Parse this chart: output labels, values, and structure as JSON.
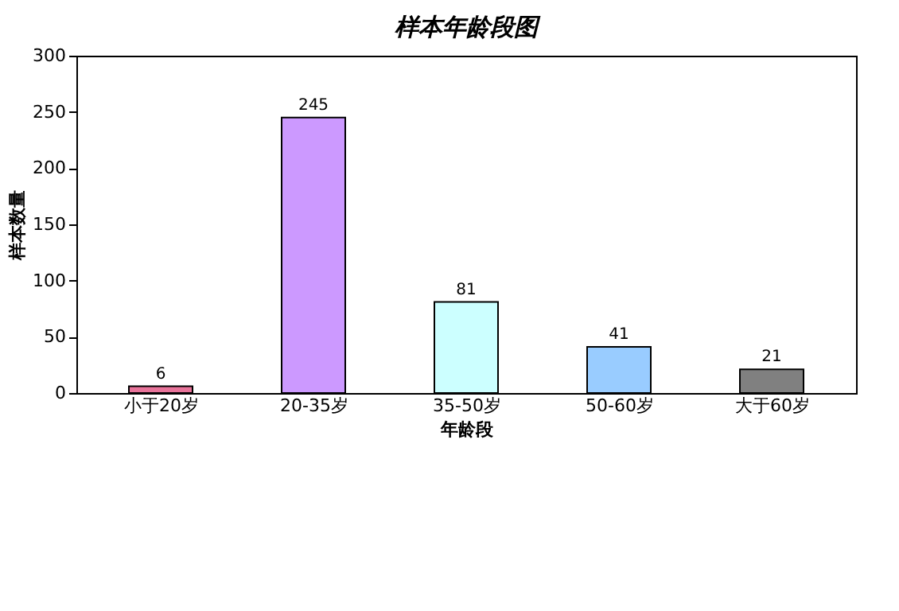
{
  "chart_data": {
    "type": "bar",
    "title": "样本年龄段图",
    "xlabel": "年龄段",
    "ylabel": "样本数量",
    "categories": [
      "小于20岁",
      "20-35岁",
      "35-50岁",
      "50-60岁",
      "大于60岁"
    ],
    "values": [
      6,
      245,
      81,
      41,
      21
    ],
    "colors": [
      "#e8739a",
      "#cc99ff",
      "#ccffff",
      "#99ccff",
      "#808080"
    ],
    "ylim": [
      0,
      300
    ],
    "yticks": [
      0,
      50,
      100,
      150,
      200,
      250,
      300
    ],
    "grid": false,
    "data_labels": true
  }
}
